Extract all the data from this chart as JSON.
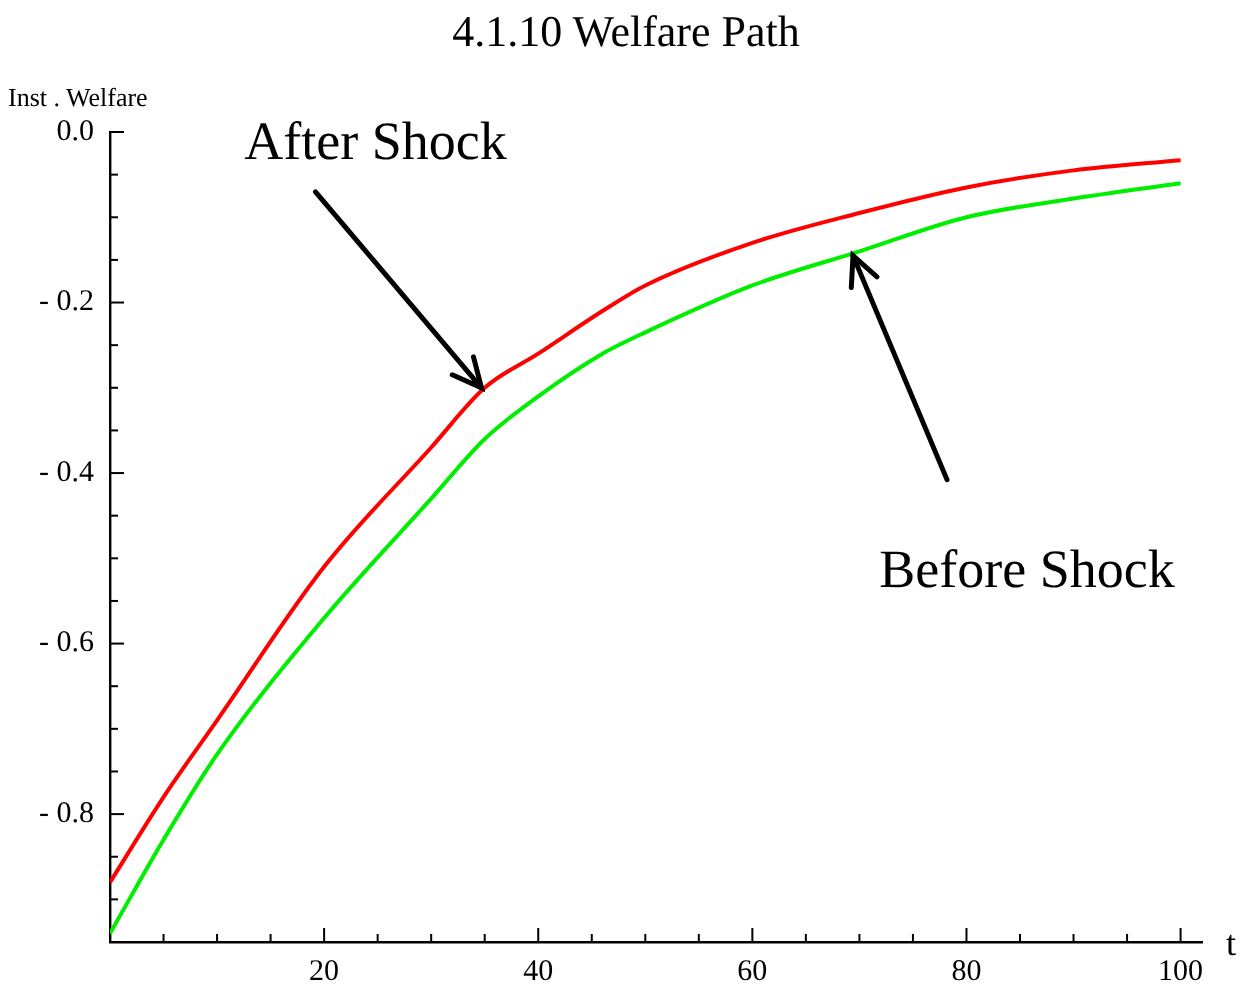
{
  "chart_data": {
    "type": "line",
    "title": "4.1.10 Welfare Path",
    "xlabel": "t",
    "ylabel": "Inst . Welfare",
    "x": [
      0,
      5,
      10,
      20,
      30,
      35,
      40,
      46,
      50,
      60,
      70,
      80,
      90,
      100
    ],
    "series": [
      {
        "color": "#ff0000",
        "values": [
          -0.88,
          -0.78,
          -0.69,
          -0.51,
          -0.37,
          -0.3,
          -0.26,
          -0.21,
          -0.18,
          -0.13,
          -0.095,
          -0.065,
          -0.045,
          -0.033
        ]
      },
      {
        "color": "#00ee00",
        "values": [
          -0.94,
          -0.83,
          -0.73,
          -0.57,
          -0.43,
          -0.36,
          -0.31,
          -0.26,
          -0.235,
          -0.18,
          -0.14,
          -0.1,
          -0.078,
          -0.06
        ]
      }
    ],
    "annotations": [
      {
        "text": "After Shock",
        "x": 34.7,
        "y": -0.3
      },
      {
        "text": "Before Shock",
        "x": 69.4,
        "y": -0.145
      }
    ],
    "xlim": [
      0,
      102
    ],
    "ylim": [
      -0.95,
      0
    ],
    "xticks": [
      {
        "value": 0,
        "label": null
      },
      {
        "value": 5,
        "label": null
      },
      {
        "value": 10,
        "label": null
      },
      {
        "value": 15,
        "label": null
      },
      20,
      {
        "value": 25,
        "label": null
      },
      {
        "value": 30,
        "label": null
      },
      {
        "value": 35,
        "label": null
      },
      40,
      {
        "value": 45,
        "label": null
      },
      {
        "value": 50,
        "label": null
      },
      {
        "value": 55,
        "label": null
      },
      60,
      {
        "value": 65,
        "label": null
      },
      {
        "value": 70,
        "label": null
      },
      {
        "value": 75,
        "label": null
      },
      80,
      {
        "value": 85,
        "label": null
      },
      {
        "value": 90,
        "label": null
      },
      {
        "value": 95,
        "label": null
      },
      100
    ],
    "yticks": [
      {
        "value": 0,
        "label": "0.0"
      },
      {
        "value": -0.05,
        "label": null
      },
      {
        "value": -0.1,
        "label": null
      },
      {
        "value": -0.15,
        "label": null
      },
      {
        "value": -0.2,
        "label": "- 0.2"
      },
      {
        "value": -0.25,
        "label": null
      },
      {
        "value": -0.3,
        "label": null
      },
      {
        "value": -0.35,
        "label": null
      },
      {
        "value": -0.4,
        "label": "- 0.4"
      },
      {
        "value": -0.45,
        "label": null
      },
      {
        "value": -0.5,
        "label": null
      },
      {
        "value": -0.55,
        "label": null
      },
      {
        "value": -0.6,
        "label": "- 0.6"
      },
      {
        "value": -0.65,
        "label": null
      },
      {
        "value": -0.7,
        "label": null
      },
      {
        "value": -0.75,
        "label": null
      },
      {
        "value": -0.8,
        "label": "- 0.8"
      },
      {
        "value": -0.85,
        "label": null
      },
      {
        "value": -0.9,
        "label": null
      }
    ],
    "marker": "none",
    "line_style": "solid"
  }
}
